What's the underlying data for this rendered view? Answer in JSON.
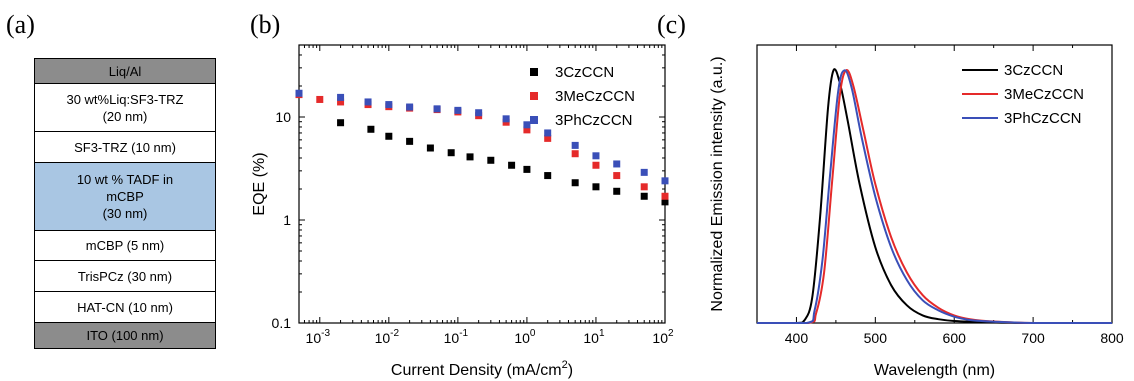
{
  "panels": {
    "a": {
      "label": "(a)"
    },
    "b": {
      "label": "(b)"
    },
    "c": {
      "label": "(c)"
    }
  },
  "device_stack": {
    "layers": [
      {
        "lines": [
          "Liq/Al"
        ],
        "color": "#8c8c8c"
      },
      {
        "lines": [
          "30 wt%Liq:SF3-TRZ",
          "(20 nm)"
        ],
        "color": "#ffffff"
      },
      {
        "lines": [
          "SF3-TRZ (10 nm)"
        ],
        "color": "#ffffff"
      },
      {
        "lines": [
          "10 wt % TADF in",
          "mCBP",
          "(30 nm)"
        ],
        "color": "#a9c6e3"
      },
      {
        "lines": [
          "mCBP (5 nm)"
        ],
        "color": "#ffffff"
      },
      {
        "lines": [
          "TrisPCz (30 nm)"
        ],
        "color": "#ffffff"
      },
      {
        "lines": [
          "HAT-CN (10 nm)"
        ],
        "color": "#ffffff"
      },
      {
        "lines": [
          "ITO (100 nm)"
        ],
        "color": "#8c8c8c"
      }
    ]
  },
  "chart_data": [
    {
      "type": "scatter",
      "xscale": "log",
      "yscale": "log",
      "xlabel": "Current Density (mA/cm",
      "xlabel_sup": "2",
      "xlabel_end": ")",
      "ylabel": "EQE (%)",
      "xlim": [
        0.0005,
        100
      ],
      "ylim": [
        0.1,
        50
      ],
      "xticks": [
        {
          "base": "10",
          "exp": "-3",
          "value": 0.001
        },
        {
          "base": "10",
          "exp": "-2",
          "value": 0.01
        },
        {
          "base": "10",
          "exp": "-1",
          "value": 0.1
        },
        {
          "base": "10",
          "exp": "0",
          "value": 1
        },
        {
          "base": "10",
          "exp": "1",
          "value": 10
        },
        {
          "base": "10",
          "exp": "2",
          "value": 100
        }
      ],
      "yticks": [
        {
          "label": "0.1",
          "value": 0.1
        },
        {
          "label": "1",
          "value": 1
        },
        {
          "label": "10",
          "value": 10
        }
      ],
      "legend_position": "top-right",
      "series": [
        {
          "name": "3CzCCN",
          "color": "#000000",
          "x": [
            0.002,
            0.0055,
            0.01,
            0.02,
            0.04,
            0.08,
            0.15,
            0.3,
            0.6,
            1,
            2,
            5,
            10,
            20,
            50,
            100
          ],
          "y": [
            8.8,
            7.6,
            6.5,
            5.8,
            5.0,
            4.5,
            4.1,
            3.8,
            3.4,
            3.1,
            2.7,
            2.3,
            2.1,
            1.9,
            1.7,
            1.5
          ]
        },
        {
          "name": "3MeCzCCN",
          "color": "#e52a2a",
          "x": [
            0.0005,
            0.001,
            0.002,
            0.005,
            0.01,
            0.02,
            0.05,
            0.1,
            0.2,
            0.5,
            1,
            2,
            5,
            10,
            20,
            50,
            100
          ],
          "y": [
            16.5,
            14.8,
            14.0,
            13.2,
            12.6,
            12.2,
            11.8,
            11.2,
            10.3,
            8.9,
            7.5,
            6.2,
            4.4,
            3.4,
            2.7,
            2.1,
            1.7
          ]
        },
        {
          "name": "3PhCzCCN",
          "color": "#3a4fb8",
          "x": [
            0.0005,
            0.002,
            0.005,
            0.01,
            0.02,
            0.05,
            0.1,
            0.2,
            0.5,
            1,
            2,
            5,
            10,
            20,
            50,
            100
          ],
          "y": [
            17.0,
            15.5,
            14.0,
            13.2,
            12.5,
            12.0,
            11.6,
            11.0,
            9.6,
            8.4,
            7.0,
            5.3,
            4.2,
            3.5,
            2.9,
            2.4
          ]
        }
      ]
    },
    {
      "type": "line",
      "xlabel": "Wavelength (nm)",
      "ylabel": "Normalized Emission intensity (a.u.)",
      "xlim": [
        350,
        800
      ],
      "ylim": [
        0,
        1.1
      ],
      "xticks": [
        "400",
        "500",
        "600",
        "700",
        "800"
      ],
      "legend_position": "top-right",
      "series": [
        {
          "name": "3CzCCN",
          "color": "#000000",
          "x": [
            350,
            400,
            410,
            420,
            430,
            440,
            447,
            455,
            465,
            480,
            500,
            520,
            540,
            560,
            580,
            600,
            640,
            700,
            800
          ],
          "y": [
            0,
            0,
            0.01,
            0.1,
            0.42,
            0.85,
            1.0,
            0.95,
            0.8,
            0.55,
            0.3,
            0.15,
            0.07,
            0.03,
            0.015,
            0.008,
            0.003,
            0,
            0
          ]
        },
        {
          "name": "3MeCzCCN",
          "color": "#e52a2a",
          "x": [
            350,
            415,
            425,
            435,
            445,
            455,
            463,
            472,
            485,
            500,
            520,
            540,
            560,
            580,
            600,
            620,
            650,
            700,
            800
          ],
          "y": [
            0,
            0,
            0.04,
            0.2,
            0.55,
            0.9,
            1.0,
            0.94,
            0.76,
            0.55,
            0.34,
            0.2,
            0.11,
            0.06,
            0.03,
            0.015,
            0.006,
            0,
            0
          ]
        },
        {
          "name": "3PhCzCCN",
          "color": "#3a4fb8",
          "x": [
            350,
            413,
            423,
            433,
            443,
            453,
            461,
            470,
            483,
            500,
            520,
            540,
            560,
            580,
            600,
            620,
            650,
            700,
            800
          ],
          "y": [
            0,
            0,
            0.05,
            0.25,
            0.6,
            0.92,
            1.0,
            0.93,
            0.73,
            0.5,
            0.3,
            0.17,
            0.09,
            0.05,
            0.025,
            0.012,
            0.005,
            0,
            0
          ]
        }
      ]
    }
  ]
}
